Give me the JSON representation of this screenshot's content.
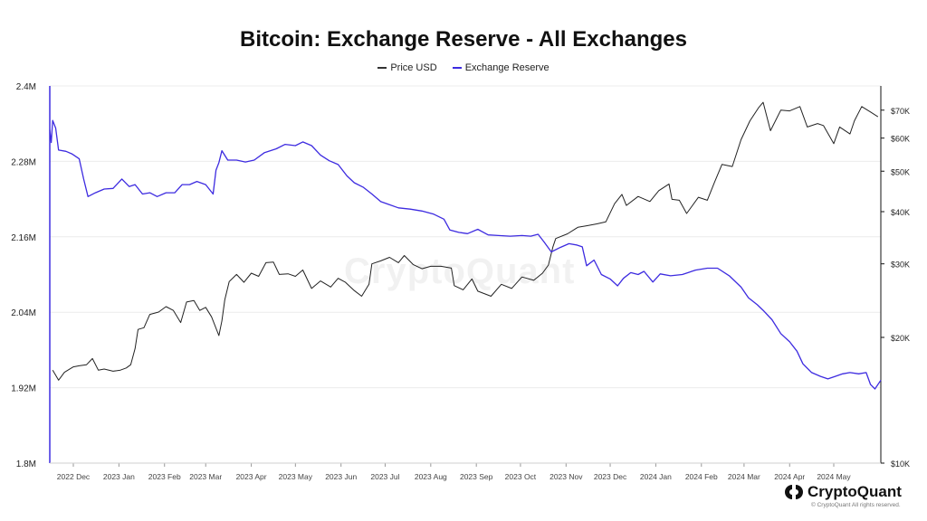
{
  "title": "Bitcoin: Exchange Reserve - All Exchanges",
  "watermark": "CryptoQuant",
  "brand": {
    "name": "CryptoQuant",
    "copyright": "© CryptoQuant All rights reserved.",
    "logo_icon": "cryptoquant-logo-icon"
  },
  "chart_data": {
    "type": "line",
    "x_axis": {
      "type": "time",
      "range": [
        "2022-11-15",
        "2024-06-02"
      ],
      "tick_labels": [
        "2022 Dec",
        "2023 Jan",
        "2023 Feb",
        "2023 Mar",
        "2023 Apr",
        "2023 May",
        "2023 Jun",
        "2023 Jul",
        "2023 Aug",
        "2023 Sep",
        "2023 Oct",
        "2023 Nov",
        "2023 Dec",
        "2024 Jan",
        "2024 Feb",
        "2024 Mar",
        "2024 Apr",
        "2024 May"
      ],
      "tick_dates": [
        "2022-12-01",
        "2023-01-01",
        "2023-02-01",
        "2023-03-01",
        "2023-04-01",
        "2023-05-01",
        "2023-06-01",
        "2023-07-01",
        "2023-08-01",
        "2023-09-01",
        "2023-10-01",
        "2023-11-01",
        "2023-12-01",
        "2024-01-01",
        "2024-02-01",
        "2024-03-01",
        "2024-04-01",
        "2024-05-01"
      ]
    },
    "y_left": {
      "range": [
        1800000,
        2400000
      ],
      "ticks": [
        1800000,
        1920000,
        2040000,
        2160000,
        2280000,
        2400000
      ],
      "tick_labels": [
        "1.8M",
        "1.92M",
        "2.04M",
        "2.16M",
        "2.28M",
        "2.4M"
      ],
      "color": "#3d2be0"
    },
    "y_right": {
      "scale": "log",
      "range": [
        10000,
        80000
      ],
      "ticks": [
        10000,
        20000,
        30000,
        40000,
        50000,
        60000,
        70000
      ],
      "tick_labels": [
        "$10K",
        "$20K",
        "$30K",
        "$40K",
        "$50K",
        "$60K",
        "$70K"
      ],
      "color": "#111111"
    },
    "grid": true,
    "legend": "top-center",
    "series": [
      {
        "name": "Price USD",
        "axis": "right",
        "color": "#222222",
        "points": [
          [
            "2022-11-17",
            16700
          ],
          [
            "2022-11-21",
            15800
          ],
          [
            "2022-11-25",
            16500
          ],
          [
            "2022-12-01",
            17000
          ],
          [
            "2022-12-05",
            17100
          ],
          [
            "2022-12-10",
            17200
          ],
          [
            "2022-12-14",
            17800
          ],
          [
            "2022-12-18",
            16700
          ],
          [
            "2022-12-22",
            16800
          ],
          [
            "2022-12-28",
            16600
          ],
          [
            "2023-01-02",
            16700
          ],
          [
            "2023-01-06",
            16900
          ],
          [
            "2023-01-09",
            17200
          ],
          [
            "2023-01-12",
            18800
          ],
          [
            "2023-01-14",
            20900
          ],
          [
            "2023-01-18",
            21100
          ],
          [
            "2023-01-22",
            22700
          ],
          [
            "2023-01-28",
            23000
          ],
          [
            "2023-02-02",
            23700
          ],
          [
            "2023-02-07",
            23200
          ],
          [
            "2023-02-12",
            21700
          ],
          [
            "2023-02-16",
            24300
          ],
          [
            "2023-02-21",
            24500
          ],
          [
            "2023-02-25",
            23200
          ],
          [
            "2023-03-01",
            23600
          ],
          [
            "2023-03-05",
            22400
          ],
          [
            "2023-03-10",
            20200
          ],
          [
            "2023-03-12",
            21900
          ],
          [
            "2023-03-14",
            24600
          ],
          [
            "2023-03-17",
            27200
          ],
          [
            "2023-03-22",
            28300
          ],
          [
            "2023-03-27",
            27100
          ],
          [
            "2023-04-01",
            28500
          ],
          [
            "2023-04-06",
            28000
          ],
          [
            "2023-04-11",
            30200
          ],
          [
            "2023-04-16",
            30300
          ],
          [
            "2023-04-20",
            28300
          ],
          [
            "2023-04-26",
            28400
          ],
          [
            "2023-05-01",
            28000
          ],
          [
            "2023-05-06",
            29000
          ],
          [
            "2023-05-12",
            26200
          ],
          [
            "2023-05-18",
            27300
          ],
          [
            "2023-05-25",
            26400
          ],
          [
            "2023-05-30",
            27700
          ],
          [
            "2023-06-04",
            27100
          ],
          [
            "2023-06-10",
            25900
          ],
          [
            "2023-06-15",
            25100
          ],
          [
            "2023-06-20",
            26800
          ],
          [
            "2023-06-22",
            30000
          ],
          [
            "2023-06-28",
            30500
          ],
          [
            "2023-07-04",
            31100
          ],
          [
            "2023-07-10",
            30200
          ],
          [
            "2023-07-14",
            31400
          ],
          [
            "2023-07-20",
            29900
          ],
          [
            "2023-07-26",
            29200
          ],
          [
            "2023-08-01",
            29600
          ],
          [
            "2023-08-08",
            29600
          ],
          [
            "2023-08-15",
            29300
          ],
          [
            "2023-08-17",
            26600
          ],
          [
            "2023-08-23",
            26000
          ],
          [
            "2023-08-29",
            27600
          ],
          [
            "2023-09-02",
            25800
          ],
          [
            "2023-09-11",
            25100
          ],
          [
            "2023-09-18",
            26800
          ],
          [
            "2023-09-25",
            26200
          ],
          [
            "2023-10-02",
            27900
          ],
          [
            "2023-10-10",
            27400
          ],
          [
            "2023-10-16",
            28500
          ],
          [
            "2023-10-20",
            29800
          ],
          [
            "2023-10-23",
            32900
          ],
          [
            "2023-10-25",
            34500
          ],
          [
            "2023-11-02",
            35400
          ],
          [
            "2023-11-09",
            36700
          ],
          [
            "2023-11-15",
            37000
          ],
          [
            "2023-11-22",
            37400
          ],
          [
            "2023-11-28",
            37800
          ],
          [
            "2023-12-04",
            41800
          ],
          [
            "2023-12-09",
            44000
          ],
          [
            "2023-12-12",
            41400
          ],
          [
            "2023-12-20",
            43500
          ],
          [
            "2023-12-28",
            42300
          ],
          [
            "2024-01-03",
            44900
          ],
          [
            "2024-01-10",
            46600
          ],
          [
            "2024-01-12",
            42800
          ],
          [
            "2024-01-17",
            42600
          ],
          [
            "2024-01-22",
            39600
          ],
          [
            "2024-01-30",
            43300
          ],
          [
            "2024-02-05",
            42600
          ],
          [
            "2024-02-10",
            47100
          ],
          [
            "2024-02-15",
            51900
          ],
          [
            "2024-02-22",
            51300
          ],
          [
            "2024-02-28",
            59500
          ],
          [
            "2024-03-05",
            66000
          ],
          [
            "2024-03-11",
            71000
          ],
          [
            "2024-03-14",
            73100
          ],
          [
            "2024-03-19",
            62500
          ],
          [
            "2024-03-26",
            70000
          ],
          [
            "2024-04-01",
            69700
          ],
          [
            "2024-04-08",
            71400
          ],
          [
            "2024-04-13",
            63800
          ],
          [
            "2024-04-20",
            65000
          ],
          [
            "2024-04-24",
            64300
          ],
          [
            "2024-05-01",
            58200
          ],
          [
            "2024-05-05",
            63800
          ],
          [
            "2024-05-12",
            61400
          ],
          [
            "2024-05-15",
            66000
          ],
          [
            "2024-05-20",
            71400
          ],
          [
            "2024-05-26",
            69300
          ],
          [
            "2024-05-31",
            67500
          ]
        ]
      },
      {
        "name": "Exchange Reserve",
        "axis": "left",
        "color": "#3d2be0",
        "points": [
          [
            "2022-11-15",
            2330000
          ],
          [
            "2022-11-16",
            2310000
          ],
          [
            "2022-11-17",
            2345000
          ],
          [
            "2022-11-19",
            2333000
          ],
          [
            "2022-11-21",
            2298000
          ],
          [
            "2022-11-26",
            2296000
          ],
          [
            "2022-11-30",
            2292000
          ],
          [
            "2022-12-05",
            2284000
          ],
          [
            "2022-12-08",
            2252000
          ],
          [
            "2022-12-11",
            2224000
          ],
          [
            "2022-12-16",
            2230000
          ],
          [
            "2022-12-22",
            2236000
          ],
          [
            "2022-12-28",
            2237000
          ],
          [
            "2023-01-03",
            2252000
          ],
          [
            "2023-01-08",
            2240000
          ],
          [
            "2023-01-12",
            2243000
          ],
          [
            "2023-01-17",
            2228000
          ],
          [
            "2023-01-22",
            2230000
          ],
          [
            "2023-01-27",
            2224000
          ],
          [
            "2023-02-02",
            2230000
          ],
          [
            "2023-02-08",
            2230000
          ],
          [
            "2023-02-13",
            2243000
          ],
          [
            "2023-02-18",
            2243000
          ],
          [
            "2023-02-23",
            2248000
          ],
          [
            "2023-03-01",
            2243000
          ],
          [
            "2023-03-06",
            2228000
          ],
          [
            "2023-03-08",
            2266000
          ],
          [
            "2023-03-10",
            2278000
          ],
          [
            "2023-03-12",
            2297000
          ],
          [
            "2023-03-16",
            2282000
          ],
          [
            "2023-03-22",
            2282000
          ],
          [
            "2023-03-28",
            2279000
          ],
          [
            "2023-04-03",
            2282000
          ],
          [
            "2023-04-10",
            2294000
          ],
          [
            "2023-04-18",
            2300000
          ],
          [
            "2023-04-24",
            2307000
          ],
          [
            "2023-05-01",
            2305000
          ],
          [
            "2023-05-06",
            2311000
          ],
          [
            "2023-05-12",
            2305000
          ],
          [
            "2023-05-18",
            2290000
          ],
          [
            "2023-05-24",
            2281000
          ],
          [
            "2023-05-30",
            2275000
          ],
          [
            "2023-06-05",
            2257000
          ],
          [
            "2023-06-10",
            2246000
          ],
          [
            "2023-06-16",
            2239000
          ],
          [
            "2023-06-22",
            2228000
          ],
          [
            "2023-06-28",
            2216000
          ],
          [
            "2023-07-03",
            2212000
          ],
          [
            "2023-07-10",
            2206000
          ],
          [
            "2023-07-18",
            2204000
          ],
          [
            "2023-07-26",
            2201000
          ],
          [
            "2023-08-03",
            2196000
          ],
          [
            "2023-08-10",
            2188000
          ],
          [
            "2023-08-14",
            2171000
          ],
          [
            "2023-08-20",
            2167000
          ],
          [
            "2023-08-26",
            2165000
          ],
          [
            "2023-09-02",
            2172000
          ],
          [
            "2023-09-09",
            2163000
          ],
          [
            "2023-09-16",
            2162000
          ],
          [
            "2023-09-24",
            2161000
          ],
          [
            "2023-10-02",
            2162000
          ],
          [
            "2023-10-08",
            2161000
          ],
          [
            "2023-10-13",
            2164000
          ],
          [
            "2023-10-17",
            2152000
          ],
          [
            "2023-10-22",
            2136000
          ],
          [
            "2023-10-28",
            2143000
          ],
          [
            "2023-11-03",
            2149000
          ],
          [
            "2023-11-08",
            2147000
          ],
          [
            "2023-11-12",
            2144000
          ],
          [
            "2023-11-15",
            2114000
          ],
          [
            "2023-11-20",
            2123000
          ],
          [
            "2023-11-25",
            2100000
          ],
          [
            "2023-12-01",
            2093000
          ],
          [
            "2023-12-06",
            2082000
          ],
          [
            "2023-12-10",
            2094000
          ],
          [
            "2023-12-15",
            2103000
          ],
          [
            "2023-12-20",
            2100000
          ],
          [
            "2023-12-24",
            2105000
          ],
          [
            "2023-12-30",
            2088000
          ],
          [
            "2024-01-04",
            2101000
          ],
          [
            "2024-01-11",
            2098000
          ],
          [
            "2024-01-19",
            2100000
          ],
          [
            "2024-01-28",
            2107000
          ],
          [
            "2024-02-05",
            2110000
          ],
          [
            "2024-02-12",
            2110000
          ],
          [
            "2024-02-20",
            2098000
          ],
          [
            "2024-02-28",
            2080000
          ],
          [
            "2024-03-04",
            2063000
          ],
          [
            "2024-03-10",
            2052000
          ],
          [
            "2024-03-14",
            2043000
          ],
          [
            "2024-03-20",
            2028000
          ],
          [
            "2024-03-26",
            2006000
          ],
          [
            "2024-04-01",
            1993000
          ],
          [
            "2024-04-06",
            1978000
          ],
          [
            "2024-04-10",
            1958000
          ],
          [
            "2024-04-16",
            1944000
          ],
          [
            "2024-04-22",
            1938000
          ],
          [
            "2024-04-27",
            1934000
          ],
          [
            "2024-05-02",
            1938000
          ],
          [
            "2024-05-07",
            1942000
          ],
          [
            "2024-05-12",
            1944000
          ],
          [
            "2024-05-18",
            1942000
          ],
          [
            "2024-05-23",
            1944000
          ],
          [
            "2024-05-26",
            1925000
          ],
          [
            "2024-05-29",
            1918000
          ],
          [
            "2024-06-02",
            1932000
          ]
        ]
      }
    ]
  }
}
